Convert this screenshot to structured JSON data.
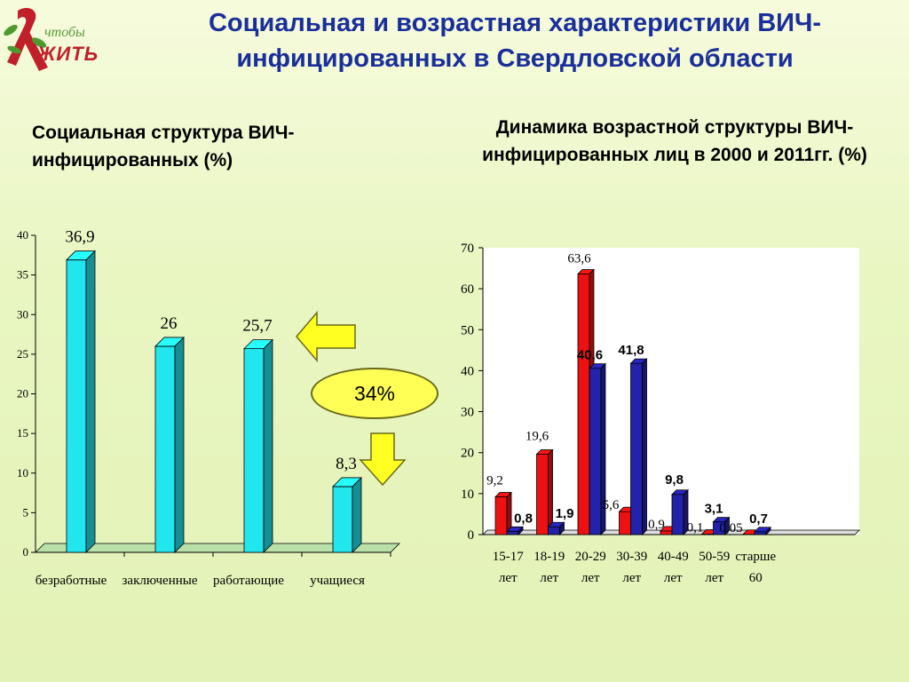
{
  "logo": {
    "line1": "чтобы",
    "line2": "ЖИТЬ"
  },
  "title": "Социальная и возрастная характеристики ВИЧ-инфицированных в Свердловской области",
  "left_subtitle": "Социальная структура ВИЧ-инфицированных (%)",
  "right_subtitle": "Динамика возрастной структуры ВИЧ-инфицированных лиц в 2000 и 2011гг. (%)",
  "callout": "34%",
  "colors": {
    "cyan": "#22e6ee",
    "red": "#ee1111",
    "blue": "#2222aa",
    "title": "#1a2f9a",
    "arrow": "#ffff22"
  },
  "chart_data": [
    {
      "type": "bar",
      "categories": [
        "безработные",
        "заключенные",
        "работающие",
        "учащиеся"
      ],
      "values": [
        36.9,
        26,
        25.7,
        8.3
      ],
      "value_labels": [
        "36,9",
        "26",
        "25,7",
        "8,3"
      ],
      "ylim": [
        0,
        40
      ],
      "yticks": [
        0,
        5,
        10,
        15,
        20,
        25,
        30,
        35,
        40
      ],
      "title": "Социальная структура ВИЧ-инфицированных (%)",
      "xlabel": "",
      "ylabel": "",
      "grid": false
    },
    {
      "type": "bar",
      "categories": [
        "15-17 лет",
        "18-19 лет",
        "20-29 лет",
        "30-39 лет",
        "40-49 лет",
        "50-59 лет",
        "старше 60"
      ],
      "category_lines": [
        [
          "15-17",
          "лет"
        ],
        [
          "18-19",
          "лет"
        ],
        [
          "20-29",
          "лет"
        ],
        [
          "30-39",
          "лет"
        ],
        [
          "40-49",
          "лет"
        ],
        [
          "50-59",
          "лет"
        ],
        [
          "старше",
          "60"
        ]
      ],
      "series": [
        {
          "values": [
            9.2,
            19.6,
            63.6,
            5.6,
            0.9,
            0.1,
            0.05
          ],
          "labels": [
            "9,2",
            "19,6",
            "63,6",
            "5,6",
            "0,9",
            "0,1",
            "0,05"
          ],
          "color": "#ee1111"
        },
        {
          "values": [
            0.8,
            1.9,
            40.6,
            41.8,
            9.8,
            3.1,
            0.7
          ],
          "labels": [
            "0,8",
            "1,9",
            "40,6",
            "41,8",
            "9,8",
            "3,1",
            "0,7"
          ],
          "color": "#2222aa"
        }
      ],
      "ylim": [
        0,
        70
      ],
      "yticks": [
        0,
        10,
        20,
        30,
        40,
        50,
        60,
        70
      ],
      "title": "Динамика возрастной структуры ВИЧ-инфицированных лиц в 2000 и 2011гг. (%)",
      "xlabel": "",
      "ylabel": "",
      "grid": false
    }
  ]
}
